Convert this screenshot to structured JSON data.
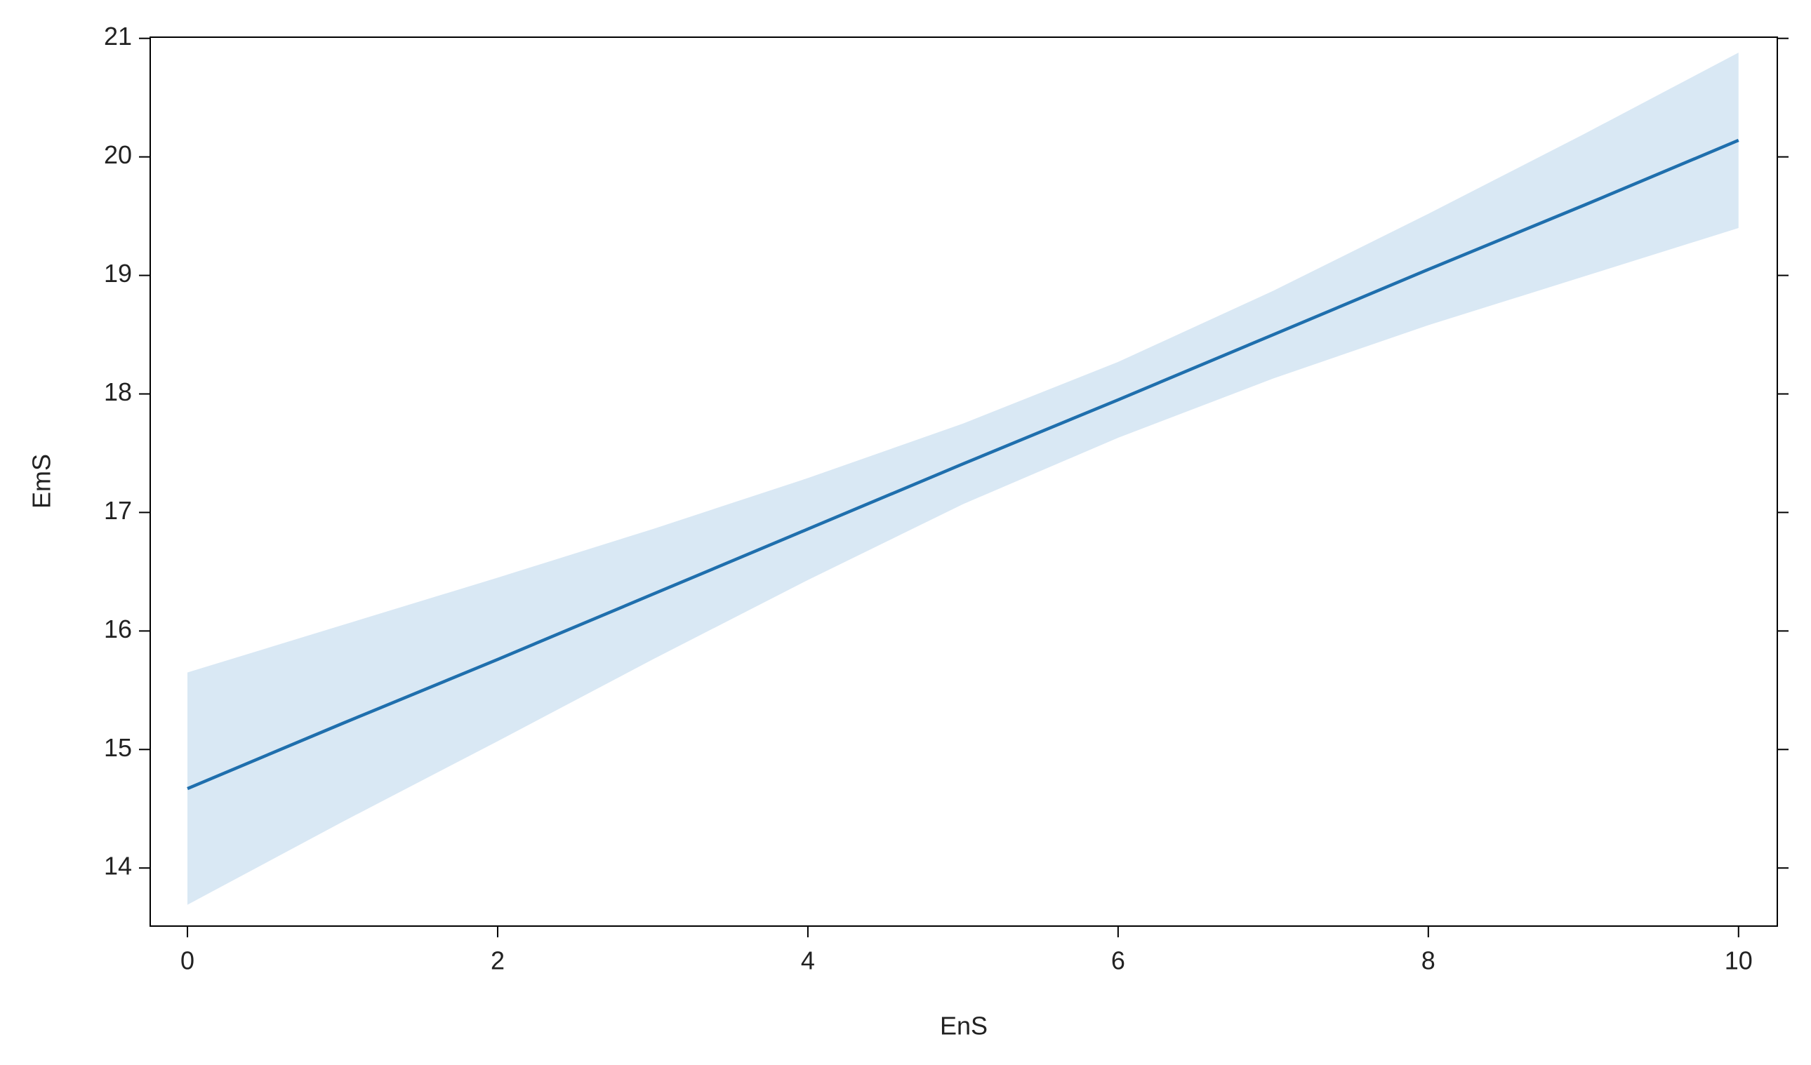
{
  "chart_data": {
    "type": "line",
    "x_label": "EnS",
    "y_label": "EmS",
    "x": [
      0,
      1,
      2,
      3,
      4,
      5,
      6,
      7,
      8,
      9,
      10
    ],
    "series": [
      {
        "color": "#1f6fad",
        "values": [
          14.67,
          15.22,
          15.76,
          16.31,
          16.86,
          17.41,
          17.95,
          18.5,
          19.05,
          19.59,
          20.14
        ],
        "lower": [
          13.69,
          14.39,
          15.07,
          15.76,
          16.43,
          17.07,
          17.63,
          18.13,
          18.58,
          18.99,
          19.4
        ],
        "upper": [
          15.65,
          16.05,
          16.45,
          16.86,
          17.29,
          17.75,
          18.27,
          18.87,
          19.52,
          20.19,
          20.88
        ],
        "band_color": "#d9e8f4"
      }
    ],
    "xlim": [
      -0.24,
      10.25
    ],
    "ylim": [
      13.51,
      21.01
    ],
    "xticks": [
      0,
      2,
      4,
      6,
      8,
      10
    ],
    "yticks": [
      14,
      15,
      16,
      17,
      18,
      19,
      20,
      21
    ],
    "grid": false
  }
}
